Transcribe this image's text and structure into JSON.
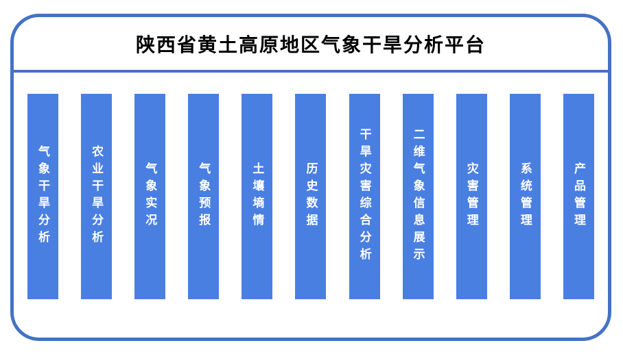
{
  "title": "陕西省黄土高原地区气象干旱分析平台",
  "modules": [
    {
      "label": "气象干旱分析"
    },
    {
      "label": "农业干旱分析"
    },
    {
      "label": "气象实况"
    },
    {
      "label": "气象预报"
    },
    {
      "label": "土壤墒情"
    },
    {
      "label": "历史数据"
    },
    {
      "label": "干旱灾害综合分析"
    },
    {
      "label": "二维气象信息展示"
    },
    {
      "label": "灾害管理"
    },
    {
      "label": "系统管理"
    },
    {
      "label": "产品管理"
    }
  ],
  "colors": {
    "border_blue": "#4472C4",
    "bar_blue": "#4A7FE2",
    "bar_text": "#FFFFFF",
    "title_text": "#000000",
    "background": "#FFFFFF"
  }
}
